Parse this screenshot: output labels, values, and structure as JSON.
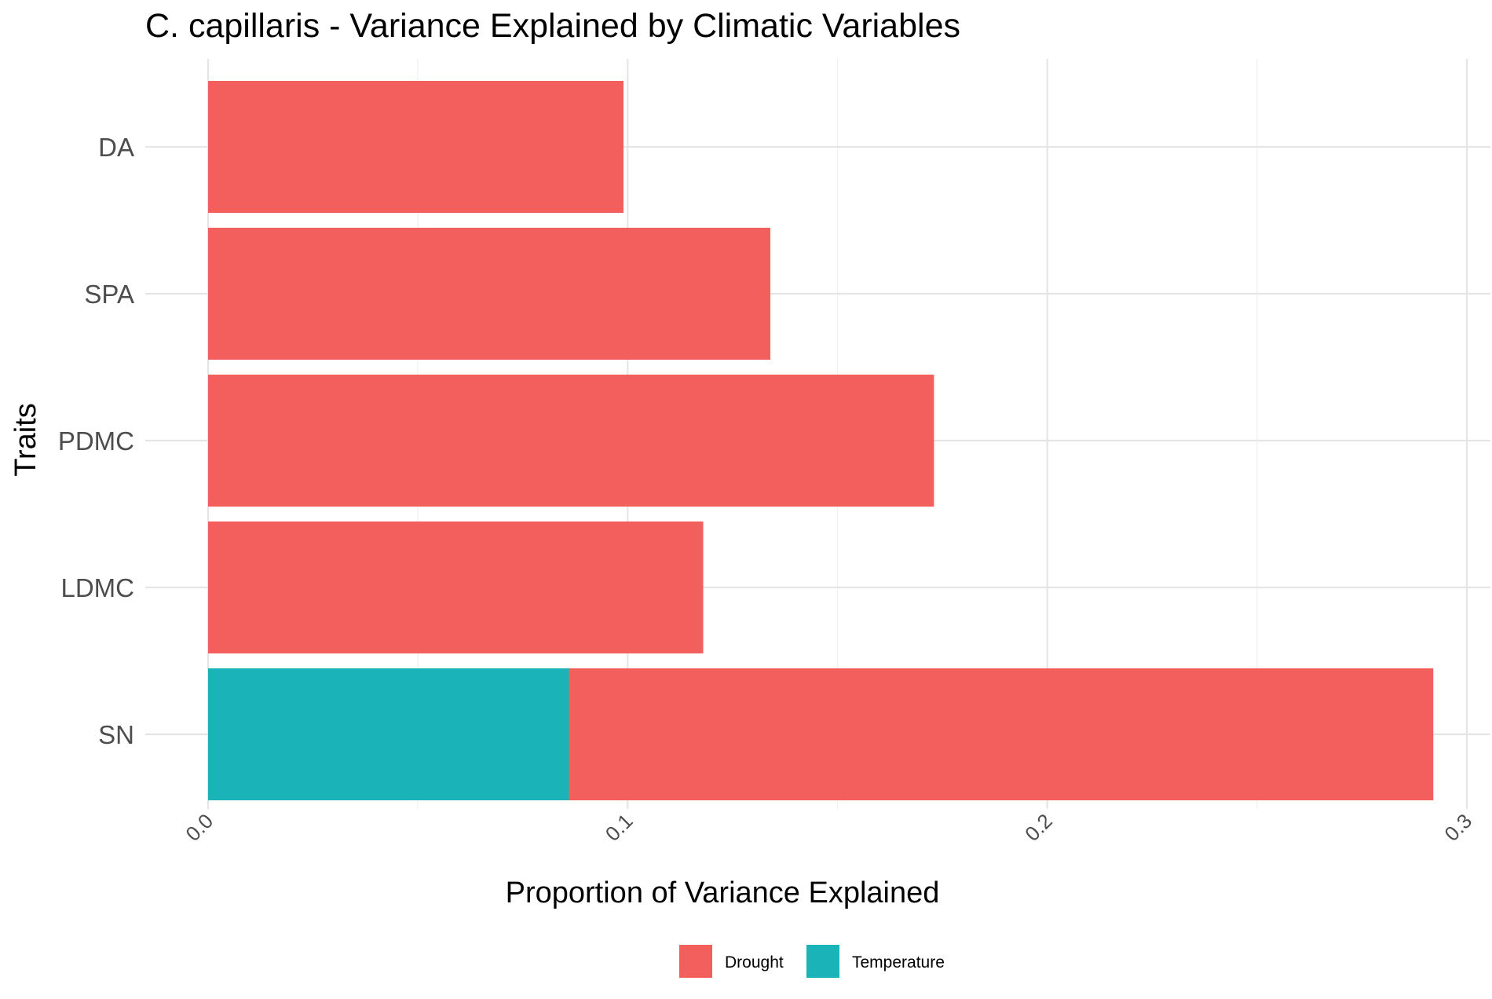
{
  "chart_data": {
    "type": "bar",
    "orientation": "horizontal",
    "stacked": true,
    "title": "C. capillaris - Variance Explained by Climatic Variables",
    "xlabel": "Proportion of Variance Explained",
    "ylabel": "Traits",
    "categories": [
      "DA",
      "SPA",
      "PDMC",
      "LDMC",
      "SN"
    ],
    "xlim": [
      0,
      0.3
    ],
    "x_ticks": [
      "0.0",
      "0.1",
      "0.2",
      "0.3"
    ],
    "x_tick_values": [
      0,
      0.1,
      0.2,
      0.3
    ],
    "series": [
      {
        "name": "Temperature",
        "color": "#19B3B8",
        "values": [
          0,
          0,
          0,
          0,
          0.086
        ]
      },
      {
        "name": "Drought",
        "color": "#F25F5C",
        "values": [
          0.099,
          0.134,
          0.173,
          0.118,
          0.206
        ]
      }
    ],
    "legend": {
      "position": "bottom",
      "entries": [
        {
          "name": "Drought",
          "color": "#F25F5C"
        },
        {
          "name": "Temperature",
          "color": "#19B3B8"
        }
      ]
    },
    "grid": true
  }
}
